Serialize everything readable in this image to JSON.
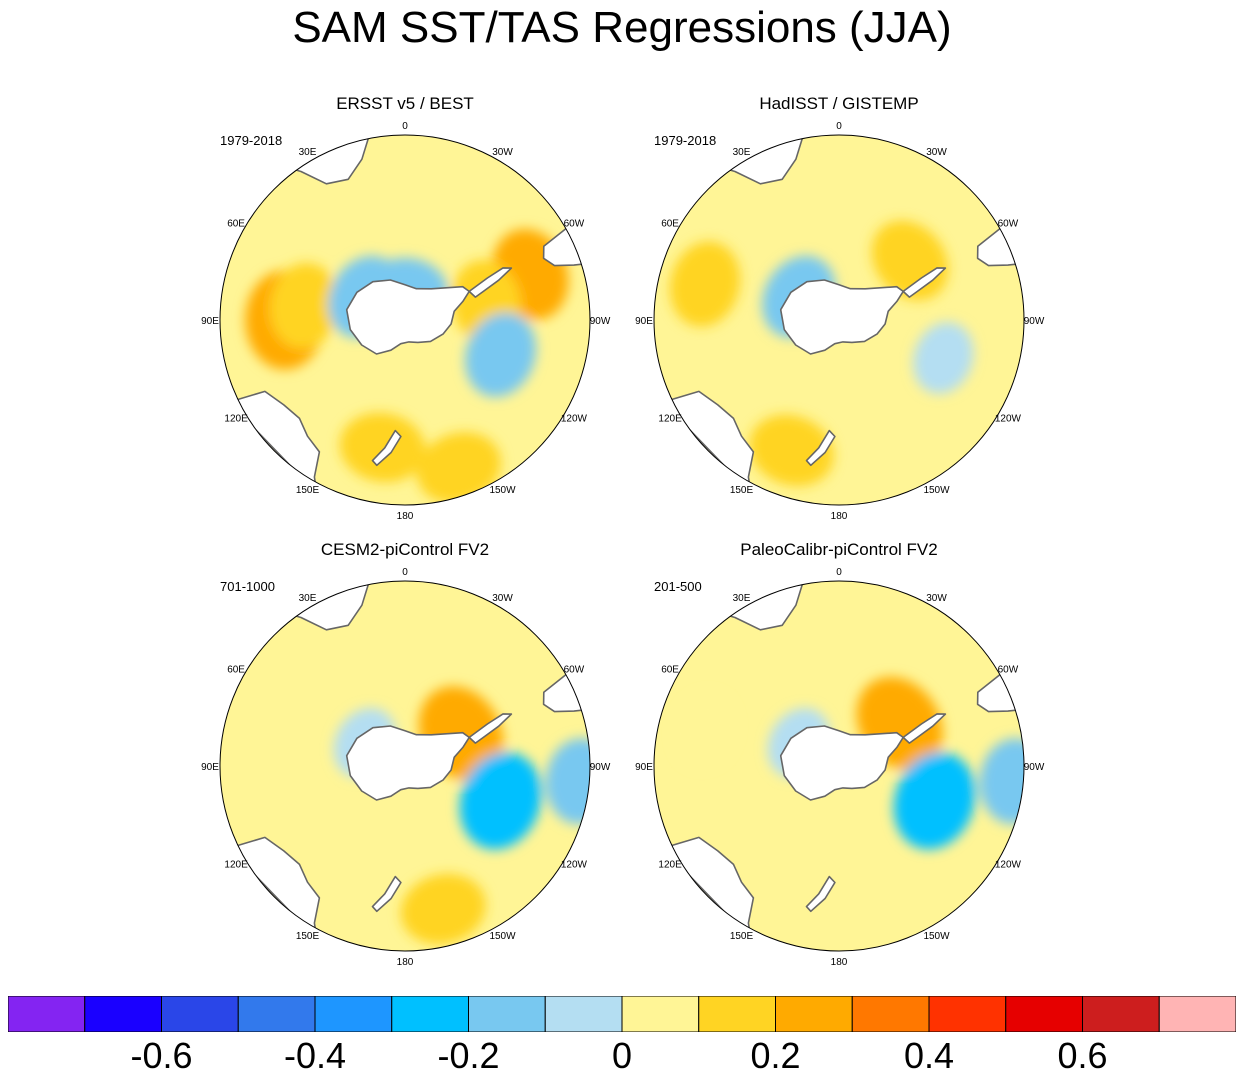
{
  "title": "SAM SST/TAS Regressions (JJA)",
  "chart_data": {
    "type": "heatmap",
    "projection": "south polar stereographic",
    "title": "SAM SST/TAS Regressions (JJA)",
    "longitude_labels": [
      "0",
      "30E",
      "60E",
      "90E",
      "120E",
      "150E",
      "180",
      "150W",
      "120W",
      "90W",
      "60W",
      "30W"
    ],
    "colorbar": {
      "levels": [
        -0.7,
        -0.6,
        -0.5,
        -0.4,
        -0.3,
        -0.2,
        -0.1,
        0,
        0.1,
        0.2,
        0.3,
        0.4,
        0.5,
        0.6,
        0.7
      ],
      "tick_labels": [
        "-0.6",
        "-0.4",
        "-0.2",
        "0",
        "0.2",
        "0.4",
        "0.6"
      ],
      "tick_values": [
        -0.6,
        -0.4,
        -0.2,
        0,
        0.2,
        0.4,
        0.6
      ],
      "colors": [
        "#8424F2",
        "#1A00FF",
        "#2A46E8",
        "#3279EC",
        "#1E96FF",
        "#00C0FF",
        "#78C8F0",
        "#B4DEF2",
        "#FFF596",
        "#FFD423",
        "#FFAA00",
        "#FF7800",
        "#FF3200",
        "#E60000",
        "#CD1E1E",
        "#FFB4B4"
      ]
    },
    "panels": [
      {
        "title": "ERSST v5 / BEST",
        "period": "1979-2018",
        "description": "Warm anomalies over the Antarctic Peninsula sector, South Indian Ocean near 80E and the Ross Sea / Pacific sector; cool anomalies over East Antarctica and the Amundsen Sea sector.",
        "regions": [
          {
            "lon": 90,
            "colat": 0.65,
            "value": 0.25
          },
          {
            "lon": 82,
            "colat": 0.55,
            "value": 0.15
          },
          {
            "lon": -70,
            "colat": 0.72,
            "value": 0.2
          },
          {
            "lon": -78,
            "colat": 0.45,
            "value": 0.15
          },
          {
            "lon": 170,
            "colat": 0.7,
            "value": 0.15
          },
          {
            "lon": -160,
            "colat": 0.85,
            "value": 0.15
          },
          {
            "lon": 0,
            "colat": 0.15,
            "value": -0.15
          },
          {
            "lon": -110,
            "colat": 0.55,
            "value": -0.15
          },
          {
            "lon": 60,
            "colat": 0.25,
            "value": -0.15
          }
        ]
      },
      {
        "title": "HadISST / GISTEMP",
        "period": "1979-2018",
        "description": "Mostly weak anomalies with scattered warm patches near the Peninsula, 70E and the Ross Sea; cool over East Antarctica and the Pacific.",
        "regions": [
          {
            "lon": 160,
            "colat": 0.75,
            "value": 0.15
          },
          {
            "lon": -50,
            "colat": 0.5,
            "value": 0.15
          },
          {
            "lon": 75,
            "colat": 0.75,
            "value": 0.15
          },
          {
            "lon": 60,
            "colat": 0.25,
            "value": -0.15
          },
          {
            "lon": -110,
            "colat": 0.6,
            "value": -0.05
          }
        ]
      },
      {
        "title": "CESM2-piControl FV2",
        "period": "701-1000",
        "description": "Warm anomalies over the Antarctic Peninsula / Weddell sector and the Pacific near 160W; cool anomaly centered in the Amundsen-Bellingshausen Sea near 110W.",
        "regions": [
          {
            "lon": -60,
            "colat": 0.35,
            "value": 0.25
          },
          {
            "lon": -165,
            "colat": 0.8,
            "value": 0.15
          },
          {
            "lon": -110,
            "colat": 0.55,
            "value": -0.25
          },
          {
            "lon": -95,
            "colat": 0.95,
            "value": -0.15
          },
          {
            "lon": 60,
            "colat": 0.25,
            "value": -0.05
          }
        ]
      },
      {
        "title": "PaleoCalibr-piControl FV2",
        "period": "201-500",
        "description": "Warm anomalies over the Antarctic Peninsula / Weddell sector and the Indian Ocean; cool anomaly centered in the Amundsen-Bellingshausen Sea near 110W.",
        "regions": [
          {
            "lon": -55,
            "colat": 0.4,
            "value": 0.25
          },
          {
            "lon": 75,
            "colat": 0.75,
            "value": 0.05
          },
          {
            "lon": -110,
            "colat": 0.55,
            "value": -0.25
          },
          {
            "lon": -95,
            "colat": 0.95,
            "value": -0.15
          },
          {
            "lon": 60,
            "colat": 0.25,
            "value": -0.05
          }
        ]
      }
    ]
  }
}
